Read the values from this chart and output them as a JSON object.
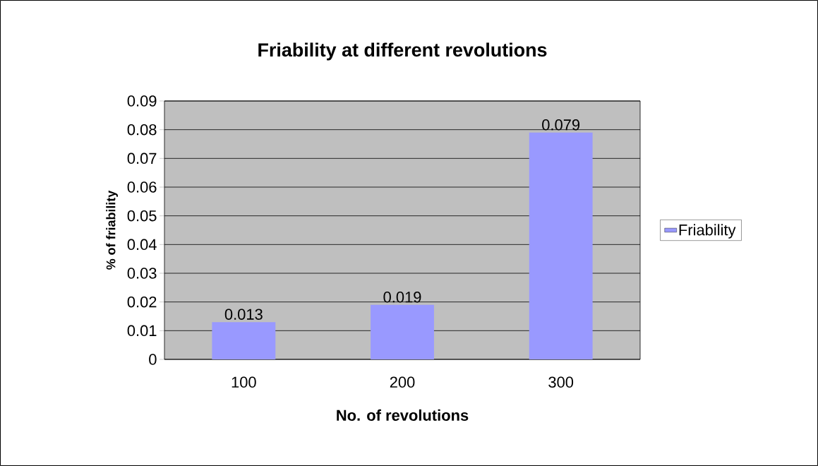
{
  "chart_data": {
    "type": "bar",
    "title": "Friability at different revolutions",
    "xlabel": "No. of revolutions",
    "ylabel": "% of friability",
    "categories": [
      "100",
      "200",
      "300"
    ],
    "series": [
      {
        "name": "Friability",
        "color": "#9999ff",
        "values": [
          0.013,
          0.019,
          0.079
        ]
      }
    ],
    "ylim": [
      0,
      0.09
    ],
    "yticks": [
      0,
      0.01,
      0.02,
      0.03,
      0.04,
      0.05,
      0.06,
      0.07,
      0.08,
      0.09
    ],
    "grid": "y",
    "legend": "right",
    "data_labels": true
  }
}
